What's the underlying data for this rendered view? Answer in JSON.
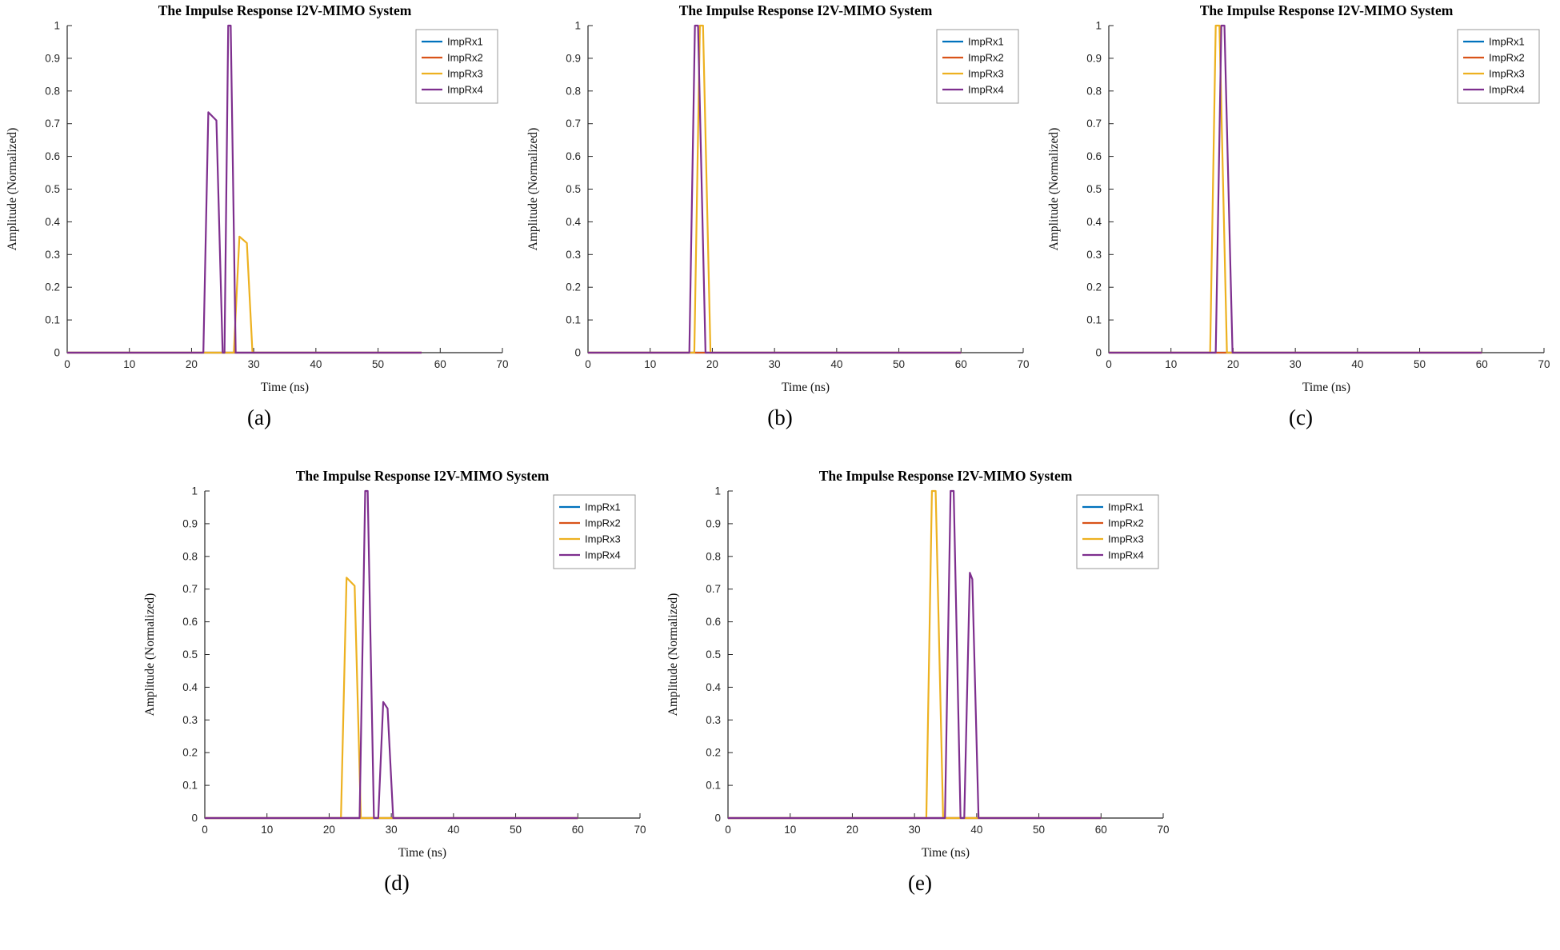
{
  "page": {
    "background": "#ffffff"
  },
  "chart_data": [
    {
      "id": "a",
      "caption": "(a)",
      "type": "line",
      "title": "The Impulse Response I2V-MIMO System",
      "xlabel": "Time (ns)",
      "ylabel": "Amplitude (Normalized)",
      "xlim": [
        0,
        70
      ],
      "ylim": [
        0,
        1
      ],
      "xticks": [
        0,
        10,
        20,
        30,
        40,
        50,
        60,
        70
      ],
      "yticks": [
        0,
        0.1,
        0.2,
        0.3,
        0.4,
        0.5,
        0.6,
        0.7,
        0.8,
        0.9,
        1
      ],
      "legend": [
        "ImpRx1",
        "ImpRx2",
        "ImpRx3",
        "ImpRx4"
      ],
      "colors": [
        "#0072BD",
        "#D95319",
        "#EDB120",
        "#7E2F8E"
      ],
      "legend_position": "top-right",
      "grid": false,
      "series": [
        {
          "name": "ImpRx1",
          "points": [
            [
              0,
              0
            ],
            [
              57,
              0
            ]
          ]
        },
        {
          "name": "ImpRx2",
          "points": [
            [
              0,
              0
            ],
            [
              57,
              0
            ]
          ]
        },
        {
          "name": "ImpRx3",
          "points": [
            [
              0,
              0
            ],
            [
              26.8,
              0
            ],
            [
              27.7,
              0.355
            ],
            [
              28.9,
              0.335
            ],
            [
              29.8,
              0
            ],
            [
              57,
              0
            ]
          ]
        },
        {
          "name": "ImpRx4",
          "points": [
            [
              0,
              0
            ],
            [
              21.9,
              0
            ],
            [
              22.7,
              0.735
            ],
            [
              24.0,
              0.71
            ],
            [
              25.0,
              0
            ],
            [
              25.3,
              0
            ],
            [
              25.9,
              1
            ],
            [
              26.3,
              1
            ],
            [
              27.1,
              0
            ],
            [
              57,
              0
            ]
          ]
        }
      ]
    },
    {
      "id": "b",
      "caption": "(b)",
      "type": "line",
      "title": "The Impulse Response I2V-MIMO System",
      "xlabel": "Time (ns)",
      "ylabel": "Amplitude (Normalized)",
      "xlim": [
        0,
        70
      ],
      "ylim": [
        0,
        1
      ],
      "xticks": [
        0,
        10,
        20,
        30,
        40,
        50,
        60,
        70
      ],
      "yticks": [
        0,
        0.1,
        0.2,
        0.3,
        0.4,
        0.5,
        0.6,
        0.7,
        0.8,
        0.9,
        1
      ],
      "legend": [
        "ImpRx1",
        "ImpRx2",
        "ImpRx3",
        "ImpRx4"
      ],
      "colors": [
        "#0072BD",
        "#D95319",
        "#EDB120",
        "#7E2F8E"
      ],
      "legend_position": "top-right",
      "grid": false,
      "series": [
        {
          "name": "ImpRx1",
          "points": [
            [
              0,
              0
            ],
            [
              60,
              0
            ]
          ]
        },
        {
          "name": "ImpRx2",
          "points": [
            [
              0,
              0
            ],
            [
              60,
              0
            ]
          ]
        },
        {
          "name": "ImpRx3",
          "points": [
            [
              0,
              0
            ],
            [
              17.1,
              0
            ],
            [
              18.0,
              1
            ],
            [
              18.5,
              1
            ],
            [
              19.7,
              0
            ],
            [
              60,
              0
            ]
          ]
        },
        {
          "name": "ImpRx4",
          "points": [
            [
              0,
              0
            ],
            [
              16.3,
              0
            ],
            [
              17.2,
              1
            ],
            [
              17.7,
              1
            ],
            [
              18.9,
              0
            ],
            [
              60,
              0
            ]
          ]
        }
      ]
    },
    {
      "id": "c",
      "caption": "(c)",
      "type": "line",
      "title": "The Impulse Response I2V-MIMO System",
      "xlabel": "Time (ns)",
      "ylabel": "Amplitude (Normalized)",
      "xlim": [
        0,
        70
      ],
      "ylim": [
        0,
        1
      ],
      "xticks": [
        0,
        10,
        20,
        30,
        40,
        50,
        60,
        70
      ],
      "yticks": [
        0,
        0.1,
        0.2,
        0.3,
        0.4,
        0.5,
        0.6,
        0.7,
        0.8,
        0.9,
        1
      ],
      "legend": [
        "ImpRx1",
        "ImpRx2",
        "ImpRx3",
        "ImpRx4"
      ],
      "colors": [
        "#0072BD",
        "#D95319",
        "#EDB120",
        "#7E2F8E"
      ],
      "legend_position": "top-right",
      "grid": false,
      "series": [
        {
          "name": "ImpRx1",
          "points": [
            [
              0,
              0
            ],
            [
              60,
              0
            ]
          ]
        },
        {
          "name": "ImpRx2",
          "points": [
            [
              0,
              0
            ],
            [
              60,
              0
            ]
          ]
        },
        {
          "name": "ImpRx3",
          "points": [
            [
              0,
              0
            ],
            [
              16.3,
              0
            ],
            [
              17.2,
              1
            ],
            [
              17.8,
              1
            ],
            [
              19.0,
              0
            ],
            [
              60,
              0
            ]
          ]
        },
        {
          "name": "ImpRx4",
          "points": [
            [
              0,
              0
            ],
            [
              17.2,
              0
            ],
            [
              18.1,
              1
            ],
            [
              18.6,
              1
            ],
            [
              19.9,
              0
            ],
            [
              60,
              0
            ]
          ]
        }
      ]
    },
    {
      "id": "d",
      "caption": "(d)",
      "type": "line",
      "title": "The Impulse Response I2V-MIMO System",
      "xlabel": "Time (ns)",
      "ylabel": "Amplitude (Normalized)",
      "xlim": [
        0,
        70
      ],
      "ylim": [
        0,
        1
      ],
      "xticks": [
        0,
        10,
        20,
        30,
        40,
        50,
        60,
        70
      ],
      "yticks": [
        0,
        0.1,
        0.2,
        0.3,
        0.4,
        0.5,
        0.6,
        0.7,
        0.8,
        0.9,
        1
      ],
      "legend": [
        "ImpRx1",
        "ImpRx2",
        "ImpRx3",
        "ImpRx4"
      ],
      "colors": [
        "#0072BD",
        "#D95319",
        "#EDB120",
        "#7E2F8E"
      ],
      "legend_position": "top-right",
      "grid": false,
      "series": [
        {
          "name": "ImpRx1",
          "points": [
            [
              0,
              0
            ],
            [
              60,
              0
            ]
          ]
        },
        {
          "name": "ImpRx2",
          "points": [
            [
              0,
              0
            ],
            [
              60,
              0
            ]
          ]
        },
        {
          "name": "ImpRx3",
          "points": [
            [
              0,
              0
            ],
            [
              21.9,
              0
            ],
            [
              22.8,
              0.735
            ],
            [
              24.1,
              0.71
            ],
            [
              25.1,
              0
            ],
            [
              60,
              0
            ]
          ]
        },
        {
          "name": "ImpRx4",
          "points": [
            [
              0,
              0
            ],
            [
              24.9,
              0
            ],
            [
              25.8,
              1
            ],
            [
              26.2,
              1
            ],
            [
              27.2,
              0
            ],
            [
              27.9,
              0
            ],
            [
              28.7,
              0.355
            ],
            [
              29.4,
              0.335
            ],
            [
              30.3,
              0
            ],
            [
              60,
              0
            ]
          ]
        }
      ]
    },
    {
      "id": "e",
      "caption": "(e)",
      "type": "line",
      "title": "The Impulse Response I2V-MIMO System",
      "xlabel": "Time (ns)",
      "ylabel": "Amplitude (Normalized)",
      "xlim": [
        0,
        70
      ],
      "ylim": [
        0,
        1
      ],
      "xticks": [
        0,
        10,
        20,
        30,
        40,
        50,
        60,
        70
      ],
      "yticks": [
        0,
        0.1,
        0.2,
        0.3,
        0.4,
        0.5,
        0.6,
        0.7,
        0.8,
        0.9,
        1
      ],
      "legend": [
        "ImpRx1",
        "ImpRx2",
        "ImpRx3",
        "ImpRx4"
      ],
      "colors": [
        "#0072BD",
        "#D95319",
        "#EDB120",
        "#7E2F8E"
      ],
      "legend_position": "top-right",
      "grid": false,
      "series": [
        {
          "name": "ImpRx1",
          "points": [
            [
              0,
              0
            ],
            [
              60,
              0
            ]
          ]
        },
        {
          "name": "ImpRx2",
          "points": [
            [
              0,
              0
            ],
            [
              60,
              0
            ]
          ]
        },
        {
          "name": "ImpRx3",
          "points": [
            [
              0,
              0
            ],
            [
              31.9,
              0
            ],
            [
              32.8,
              1
            ],
            [
              33.4,
              1
            ],
            [
              34.6,
              0
            ],
            [
              60,
              0
            ]
          ]
        },
        {
          "name": "ImpRx4",
          "points": [
            [
              0,
              0
            ],
            [
              34.9,
              0
            ],
            [
              35.8,
              1
            ],
            [
              36.3,
              1
            ],
            [
              37.4,
              0
            ],
            [
              38.0,
              0
            ],
            [
              38.9,
              0.75
            ],
            [
              39.3,
              0.73
            ],
            [
              40.3,
              0
            ],
            [
              60,
              0
            ]
          ]
        }
      ]
    }
  ]
}
